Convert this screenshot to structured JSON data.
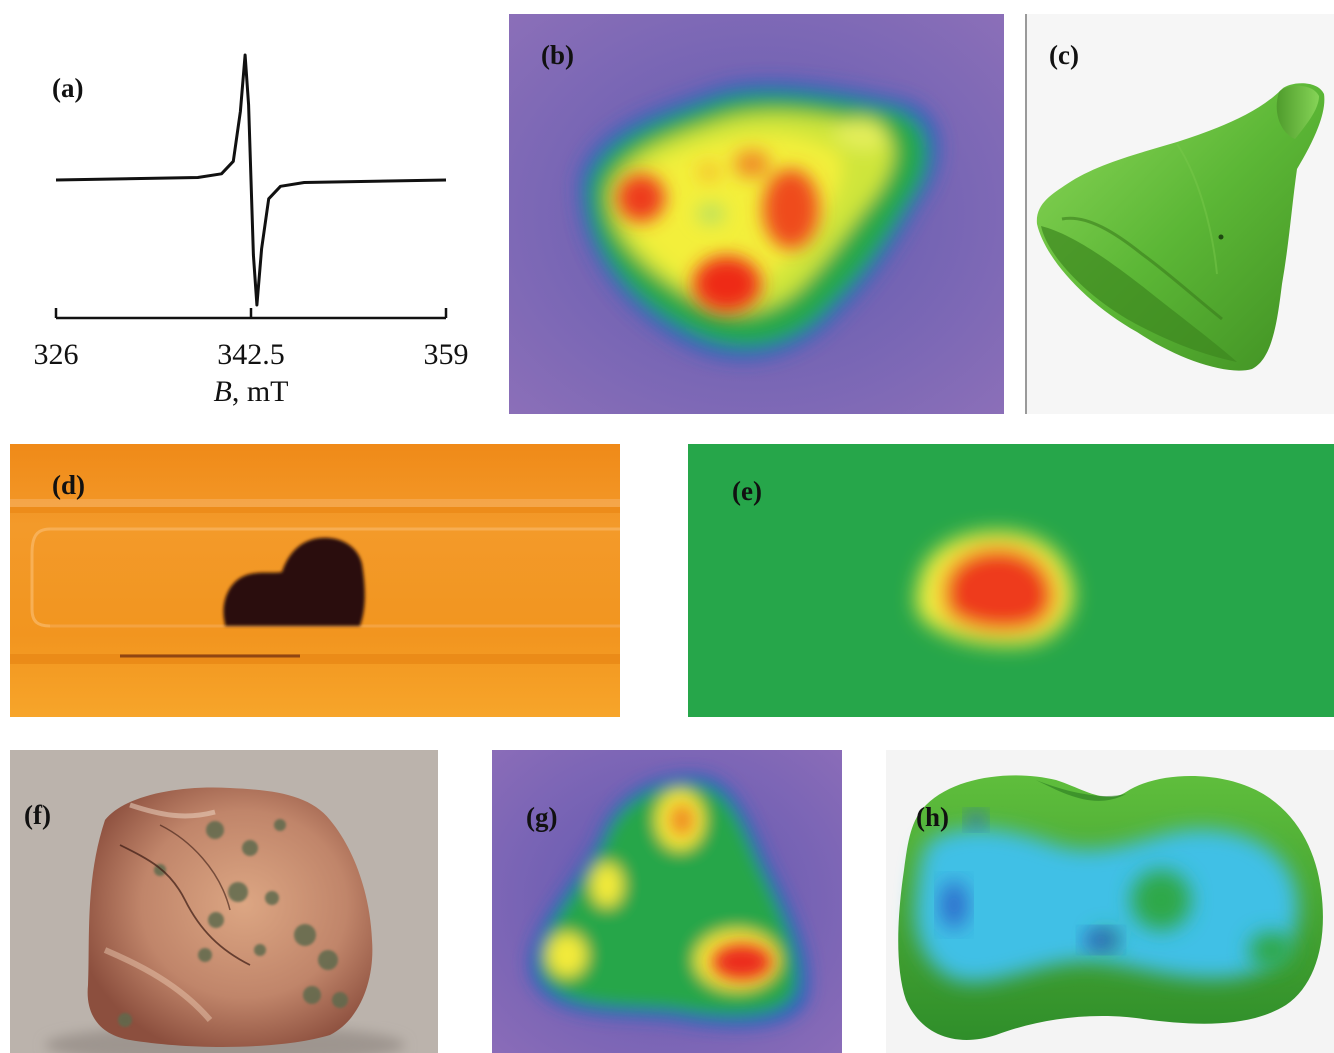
{
  "panels": {
    "a": {
      "label": "(a)"
    },
    "b": {
      "label": "(b)"
    },
    "c": {
      "label": "(c)"
    },
    "d": {
      "label": "(d)"
    },
    "e": {
      "label": "(e)"
    },
    "f": {
      "label": "(f)"
    },
    "g": {
      "label": "(g)"
    },
    "h": {
      "label": "(h)"
    }
  },
  "chart_data": {
    "type": "line",
    "title": "",
    "xlabel_var": "B",
    "xlabel_unit": ", mT",
    "ylabel": "",
    "xlim": [
      326,
      359
    ],
    "x_ticks": [
      "326",
      "342.5",
      "359"
    ],
    "x_tick_values": [
      326,
      342.5,
      359
    ],
    "grid": false,
    "y_axis_shown": false,
    "series": [
      {
        "shape": "first-derivative EPR line",
        "x": [
          326,
          338,
          340,
          341,
          341.6,
          342.0,
          342.3,
          342.5,
          342.7,
          343.0,
          343.4,
          344.0,
          345,
          347,
          359
        ],
        "y": [
          0,
          0.02,
          0.05,
          0.15,
          0.55,
          1.0,
          0.6,
          0.0,
          -0.6,
          -1.0,
          -0.55,
          -0.15,
          -0.05,
          -0.02,
          0
        ]
      }
    ]
  },
  "colors": {
    "pseudocolor_background": "#6f63b6",
    "pseudocolor_low": "#2aa84a",
    "pseudocolor_mid": "#f3f03a",
    "pseudocolor_high": "#ec2b1a",
    "render_green": "#58b833",
    "tube_orange": "#f3921d",
    "sample_dark": "#2a0e08",
    "photo_background": "#bdb4ad",
    "depth_cyan": "#3fc0e6"
  }
}
